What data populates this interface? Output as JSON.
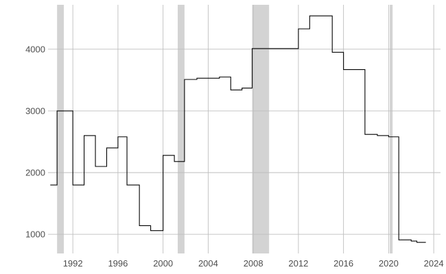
{
  "chart_data": {
    "type": "line",
    "title": "",
    "xlabel": "",
    "ylabel": "",
    "xlim": [
      1989.8,
      2024.6
    ],
    "ylim": [
      690,
      4720
    ],
    "x_ticks": [
      1992,
      1996,
      2000,
      2004,
      2008,
      2012,
      2016,
      2020,
      2024
    ],
    "x_tick_labels": [
      "1992",
      "1996",
      "2000",
      "2004",
      "2008",
      "2012",
      "2016",
      "2020",
      "2024"
    ],
    "y_ticks": [
      1000,
      2000,
      3000,
      4000
    ],
    "y_tick_labels": [
      "1000",
      "2000",
      "3000",
      "4000"
    ],
    "grid": true,
    "legend": "none",
    "line_color": "#000000",
    "shade_color": "#d3d3d3",
    "shaded_periods": [
      {
        "start": 1990.6,
        "end": 1991.2
      },
      {
        "start": 2001.3,
        "end": 2001.9
      },
      {
        "start": 2007.9,
        "end": 2009.4
      },
      {
        "start": 2020.1,
        "end": 2020.35
      }
    ],
    "series": [
      {
        "step": "post",
        "x": [
          1990.0,
          1990.4,
          1990.6,
          1992.0,
          1993.0,
          1994.0,
          1995.0,
          1996.0,
          1996.8,
          1997.9,
          1998.9,
          2000.0,
          2001.0,
          2001.9,
          2003.0,
          2005.0,
          2006.0,
          2007.0,
          2007.9,
          2012.0,
          2013.0,
          2015.0,
          2016.0,
          2017.9,
          2019.0,
          2020.0,
          2020.9,
          2022.0,
          2022.5,
          2023.3
        ],
        "y": [
          1800,
          1800,
          3000,
          1800,
          2600,
          2100,
          2400,
          2580,
          1800,
          1140,
          1060,
          2280,
          2180,
          3510,
          3530,
          3550,
          3340,
          3370,
          4010,
          4330,
          4540,
          3950,
          3670,
          2620,
          2600,
          2580,
          910,
          890,
          870,
          870
        ]
      }
    ]
  }
}
